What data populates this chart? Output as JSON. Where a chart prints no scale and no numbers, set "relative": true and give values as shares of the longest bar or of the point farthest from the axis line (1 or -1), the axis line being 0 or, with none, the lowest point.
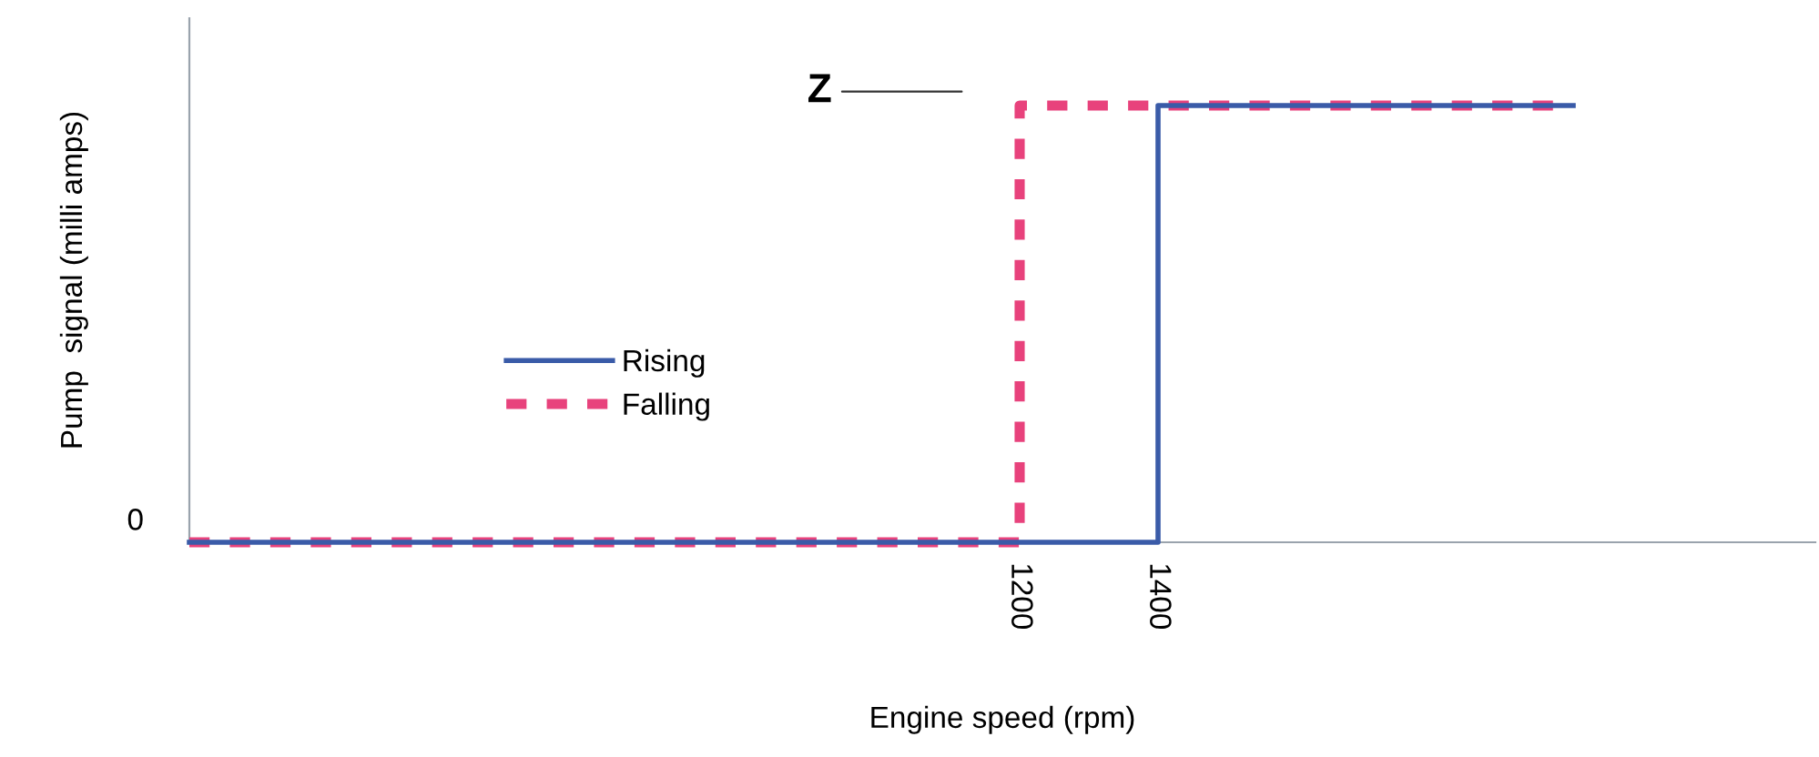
{
  "chart_data": {
    "type": "step",
    "relative": true,
    "xlabel": "Engine speed (rpm)",
    "ylabel": "Pump  signal (milli amps)",
    "xlim": [
      0,
      2350
    ],
    "xticks": [
      1200,
      1400
    ],
    "series": [
      {
        "name": "Rising",
        "color": "#3a5ba8",
        "x": [
          0,
          1400,
          2000
        ],
        "values": [
          0,
          1,
          1
        ],
        "line_style": "solid"
      },
      {
        "name": "Falling",
        "color": "#e8427c",
        "x": [
          0,
          1200,
          2000
        ],
        "values": [
          0,
          1,
          1
        ],
        "line_style": "dotted"
      }
    ],
    "annotations": [
      "0",
      "Z"
    ],
    "legend": "center left",
    "grid": false
  }
}
